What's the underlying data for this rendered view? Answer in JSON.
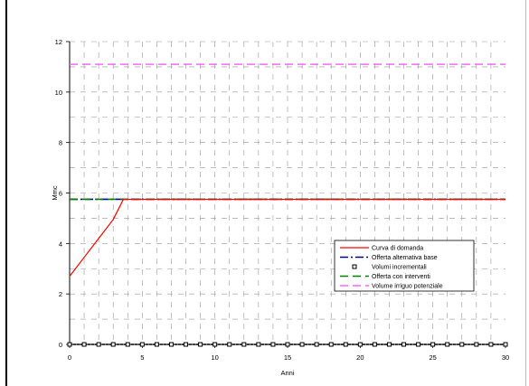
{
  "chart_data": {
    "type": "line",
    "xlabel": "Anni",
    "ylabel": "Mmc",
    "xlim": [
      0,
      30
    ],
    "ylim": [
      0,
      12
    ],
    "xticks": [
      "0",
      "5",
      "10",
      "15",
      "20",
      "25",
      "30"
    ],
    "yticks": [
      "0",
      "2",
      "4",
      "6",
      "8",
      "10",
      "12"
    ],
    "grid": true,
    "legend_position": "bottom-right",
    "series": [
      {
        "name": "Curva di domanda",
        "color": "#ff0000",
        "style": "solid",
        "x": [
          0,
          1,
          2,
          3,
          3.7,
          5,
          10,
          15,
          20,
          25,
          30
        ],
        "y": [
          2.7,
          3.45,
          4.2,
          4.95,
          5.75,
          5.75,
          5.75,
          5.75,
          5.75,
          5.75,
          5.75
        ]
      },
      {
        "name": "Offerta alternativa base",
        "color": "#000080",
        "style": "dash-dot",
        "x": [
          0,
          30
        ],
        "y": [
          5.75,
          5.75
        ]
      },
      {
        "name": "Volumi incrementali",
        "color": "#000000",
        "style": "markers",
        "x": [
          0,
          1,
          2,
          3,
          4,
          5,
          6,
          7,
          8,
          9,
          10,
          11,
          12,
          13,
          14,
          15,
          16,
          17,
          18,
          19,
          20,
          21,
          22,
          23,
          24,
          25,
          26,
          27,
          28,
          29,
          30
        ],
        "y": [
          0,
          0,
          0,
          0,
          0,
          0,
          0,
          0,
          0,
          0,
          0,
          0,
          0,
          0,
          0,
          0,
          0,
          0,
          0,
          0,
          0,
          0,
          0,
          0,
          0,
          0,
          0,
          0,
          0,
          0,
          0
        ]
      },
      {
        "name": "Offerta con interventi",
        "color": "#008000",
        "style": "dashed",
        "x": [
          0,
          30
        ],
        "y": [
          5.75,
          5.75
        ]
      },
      {
        "name": "Volume irriguo potenziale",
        "color": "#ff66ff",
        "style": "dashed",
        "x": [
          0,
          30
        ],
        "y": [
          11.1,
          11.1
        ]
      }
    ]
  }
}
